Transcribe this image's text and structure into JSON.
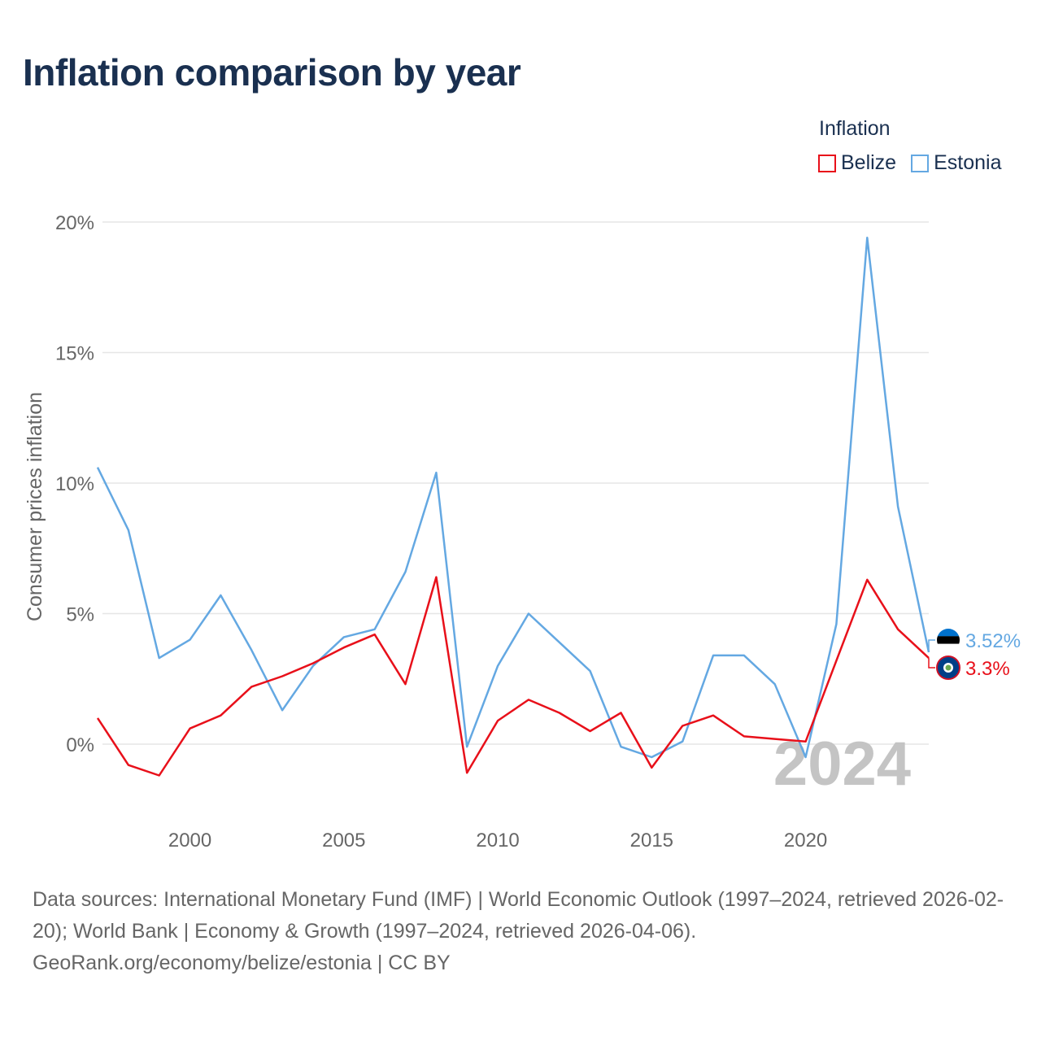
{
  "title": "Inflation comparison by year",
  "legend": {
    "title": "Inflation",
    "items": [
      {
        "name": "Belize",
        "color": "#e8101a"
      },
      {
        "name": "Estonia",
        "color": "#64a8e2"
      }
    ]
  },
  "chart_data": {
    "type": "line",
    "title": "Inflation comparison by year",
    "xlabel": "",
    "ylabel": "Consumer prices inflation",
    "ylim": [
      -3,
      20
    ],
    "xlim": [
      1997,
      2024
    ],
    "yticks": [
      0,
      5,
      10,
      15,
      20
    ],
    "ytick_labels": [
      "0%",
      "5%",
      "10%",
      "15%",
      "20%"
    ],
    "xticks": [
      2000,
      2005,
      2010,
      2015,
      2020
    ],
    "xtick_labels": [
      "2000",
      "2005",
      "2010",
      "2015",
      "2020"
    ],
    "grid": true,
    "legend_position": "top-right",
    "watermark_year": "2024",
    "x": [
      1997,
      1998,
      1999,
      2000,
      2001,
      2002,
      2003,
      2004,
      2005,
      2006,
      2007,
      2008,
      2009,
      2010,
      2011,
      2012,
      2013,
      2014,
      2015,
      2016,
      2017,
      2018,
      2019,
      2020,
      2021,
      2022,
      2023,
      2024
    ],
    "series": [
      {
        "name": "Belize",
        "color": "#e8101a",
        "end_label": "3.3%",
        "values": [
          1.0,
          -0.8,
          -1.2,
          0.6,
          1.1,
          2.2,
          2.6,
          3.1,
          3.7,
          4.2,
          2.3,
          6.4,
          -1.1,
          0.9,
          1.7,
          1.2,
          0.5,
          1.2,
          -0.9,
          0.7,
          1.1,
          0.3,
          0.2,
          0.1,
          3.2,
          6.3,
          4.4,
          3.3
        ]
      },
      {
        "name": "Estonia",
        "color": "#64a8e2",
        "end_label": "3.52%",
        "values": [
          10.6,
          8.2,
          3.3,
          4.0,
          5.7,
          3.6,
          1.3,
          3.0,
          4.1,
          4.4,
          6.6,
          10.4,
          -0.1,
          3.0,
          5.0,
          3.9,
          2.8,
          -0.1,
          -0.5,
          0.1,
          3.4,
          3.4,
          2.3,
          -0.5,
          4.6,
          19.4,
          9.1,
          3.52
        ]
      }
    ]
  },
  "footer": {
    "sources": "Data sources: International Monetary Fund (IMF) | World Economic Outlook (1997–2024, retrieved 2026-02-20); World Bank | Economy & Growth (1997–2024, retrieved 2026-04-06).",
    "attribution": "GeoRank.org/economy/belize/estonia | CC BY"
  }
}
